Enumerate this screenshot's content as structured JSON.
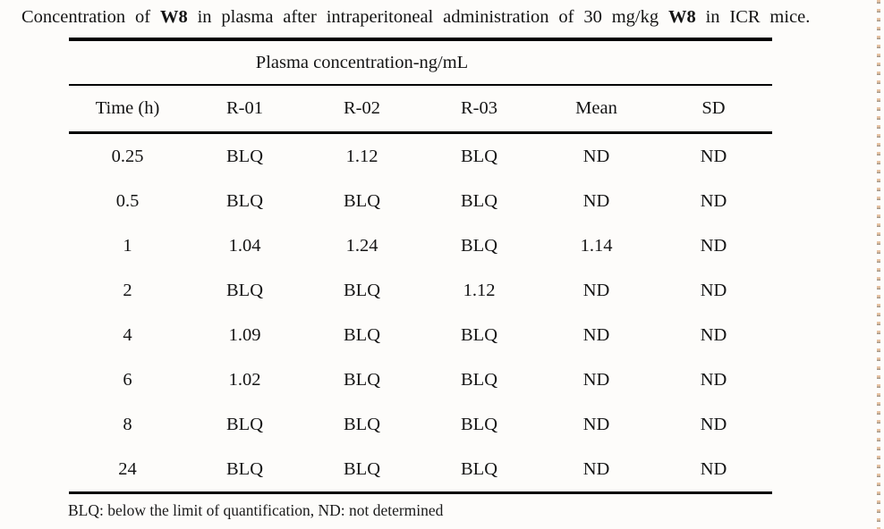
{
  "title": {
    "part1": "Concentration of ",
    "bold1": "W8",
    "part2": " in plasma after intraperitoneal administration of 30 mg/kg ",
    "bold2": "W8",
    "part3": " in ICR mice."
  },
  "table": {
    "spanner": "Plasma concentration-ng/mL",
    "columns": [
      "Time (h)",
      "R-01",
      "R-02",
      "R-03",
      "Mean",
      "SD"
    ],
    "rows": [
      [
        "0.25",
        "BLQ",
        "1.12",
        "BLQ",
        "ND",
        "ND"
      ],
      [
        "0.5",
        "BLQ",
        "BLQ",
        "BLQ",
        "ND",
        "ND"
      ],
      [
        "1",
        "1.04",
        "1.24",
        "BLQ",
        "1.14",
        "ND"
      ],
      [
        "2",
        "BLQ",
        "BLQ",
        "1.12",
        "ND",
        "ND"
      ],
      [
        "4",
        "1.09",
        "BLQ",
        "BLQ",
        "ND",
        "ND"
      ],
      [
        "6",
        "1.02",
        "BLQ",
        "BLQ",
        "ND",
        "ND"
      ],
      [
        "8",
        "BLQ",
        "BLQ",
        "BLQ",
        "ND",
        "ND"
      ],
      [
        "24",
        "BLQ",
        "BLQ",
        "BLQ",
        "ND",
        "ND"
      ]
    ],
    "footnote": "BLQ: below the limit of quantification, ND: not determined"
  },
  "chart_data": {
    "type": "table",
    "title": "Concentration of W8 in plasma after intraperitoneal administration of 30 mg/kg W8 in ICR mice.",
    "group_header": "Plasma concentration-ng/mL",
    "columns": [
      "Time (h)",
      "R-01",
      "R-02",
      "R-03",
      "Mean",
      "SD"
    ],
    "rows": [
      [
        "0.25",
        "BLQ",
        "1.12",
        "BLQ",
        "ND",
        "ND"
      ],
      [
        "0.5",
        "BLQ",
        "BLQ",
        "BLQ",
        "ND",
        "ND"
      ],
      [
        "1",
        "1.04",
        "1.24",
        "BLQ",
        "1.14",
        "ND"
      ],
      [
        "2",
        "BLQ",
        "BLQ",
        "1.12",
        "ND",
        "ND"
      ],
      [
        "4",
        "1.09",
        "BLQ",
        "BLQ",
        "ND",
        "ND"
      ],
      [
        "6",
        "1.02",
        "BLQ",
        "BLQ",
        "ND",
        "ND"
      ],
      [
        "8",
        "BLQ",
        "BLQ",
        "BLQ",
        "ND",
        "ND"
      ],
      [
        "24",
        "BLQ",
        "BLQ",
        "BLQ",
        "ND",
        "ND"
      ]
    ],
    "footnote": "BLQ: below the limit of quantification, ND: not determined"
  },
  "colors": {
    "background": "#fdfcfa",
    "text": "#141414",
    "rule": "#000000",
    "edge_dot_tan": "#dfae84",
    "edge_dot_dark": "#8a7a66"
  }
}
